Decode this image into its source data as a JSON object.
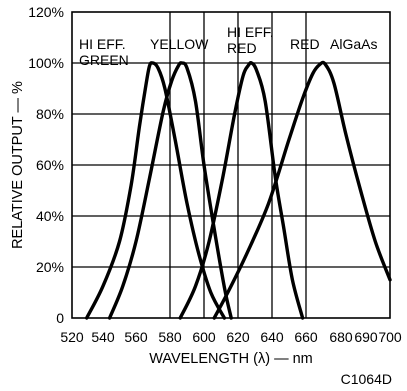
{
  "chart_data": {
    "type": "line",
    "xlabel": "WAVELENGTH (λ) — nm",
    "ylabel": "RELATIVE OUTPUT — %",
    "xlim": [
      520,
      700
    ],
    "ylim": [
      0,
      120
    ],
    "x_ticks": [
      "520",
      "540",
      "560",
      "580",
      "600",
      "620",
      "640",
      "660",
      "680",
      "690",
      "700"
    ],
    "y_ticks": [
      "0",
      "20%",
      "40%",
      "60%",
      "80%",
      "100%",
      "120%"
    ],
    "grid": true,
    "code": "C1064D",
    "series": [
      {
        "name": "HI EFF. GREEN",
        "label_lines": [
          "HI EFF.",
          "GREEN"
        ],
        "x": [
          529.5,
          540,
          550,
          557,
          562,
          566,
          568,
          570,
          573,
          577,
          583,
          590,
          597,
          604,
          612
        ],
        "y": [
          0,
          12.5,
          30,
          52,
          75,
          92,
          99,
          100,
          98,
          90,
          70,
          45,
          25,
          10,
          0
        ]
      },
      {
        "name": "YELLOW",
        "label_lines": [
          "YELLOW"
        ],
        "x": [
          544,
          552,
          560,
          568,
          576,
          581,
          585,
          587,
          590,
          595,
          600,
          606,
          612,
          616
        ],
        "y": [
          0,
          12.5,
          30,
          55,
          81,
          93,
          99,
          100,
          98,
          85,
          60,
          35,
          12,
          0
        ]
      },
      {
        "name": "HI EFF. RED",
        "label_lines": [
          "HI EFF.",
          "RED"
        ],
        "x": [
          586,
          595,
          603,
          611,
          618,
          623,
          626,
          628,
          631,
          636,
          642,
          647,
          652,
          658
        ],
        "y": [
          0,
          12.5,
          30,
          55,
          80,
          95,
          99,
          100,
          97,
          85,
          55,
          35,
          15,
          0
        ]
      },
      {
        "name": "RED",
        "label_lines": [
          "RED"
        ],
        "x": [
          606,
          614,
          625,
          638,
          650,
          658,
          664,
          668,
          671,
          676,
          682,
          688,
          694,
          700
        ],
        "y": [
          0,
          10,
          25,
          45,
          70,
          86,
          96,
          99.5,
          99.5,
          92,
          72,
          50,
          30,
          15
        ]
      },
      {
        "name": "AlGaAs",
        "label_lines": [
          "AlGaAs"
        ],
        "x": [],
        "y": []
      }
    ]
  }
}
